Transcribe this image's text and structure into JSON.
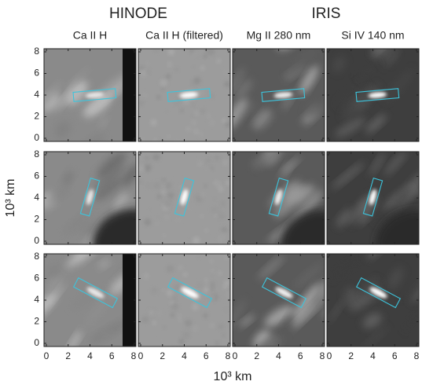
{
  "groups": [
    {
      "label": "HINODE"
    },
    {
      "label": "IRIS"
    }
  ],
  "columns": [
    "Ca II H",
    "Ca II H (filtered)",
    "Mg II 280 nm",
    "Si IV 140 nm"
  ],
  "x_axis": {
    "label": "10³ km",
    "lim": [
      0,
      8
    ],
    "ticks": [
      0,
      2,
      4,
      6,
      8
    ]
  },
  "y_axis": {
    "label": "10³ km",
    "lim": [
      0,
      8
    ],
    "ticks": [
      0,
      2,
      4,
      6,
      8
    ]
  }
}
